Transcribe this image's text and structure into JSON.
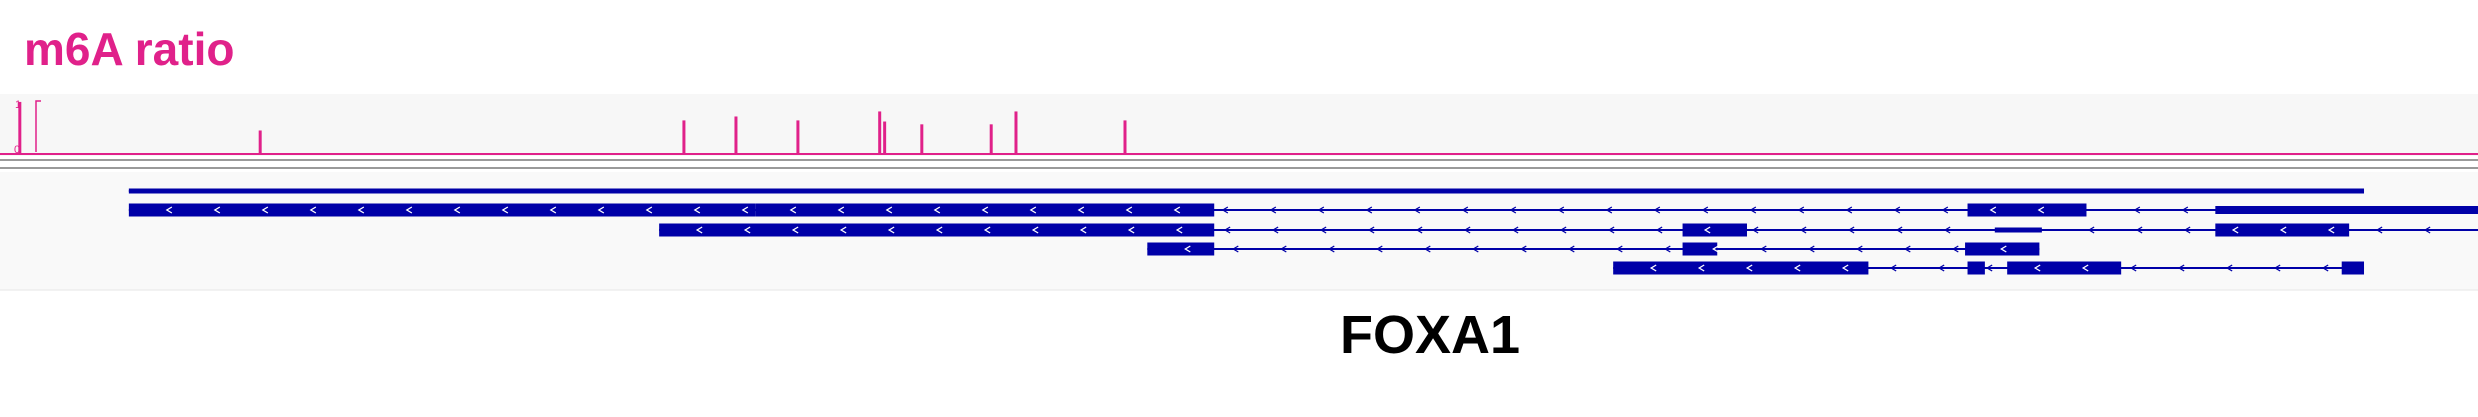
{
  "track": {
    "title": "m6A ratio",
    "color": "#e0218a",
    "scale_max_label": "1",
    "scale_min_label": "0",
    "ylim": [
      0,
      1
    ]
  },
  "gene": {
    "name": "FOXA1",
    "color": "#0000a8"
  },
  "chart_data": {
    "type": "bar",
    "title": "m6A ratio",
    "ylim": [
      0,
      1
    ],
    "x_units": "track-relative position (0-1000)",
    "peaks": [
      {
        "x": 8,
        "value": 0.93
      },
      {
        "x": 105,
        "value": 0.42
      },
      {
        "x": 276,
        "value": 0.6
      },
      {
        "x": 297,
        "value": 0.67
      },
      {
        "x": 322,
        "value": 0.6
      },
      {
        "x": 355,
        "value": 0.76
      },
      {
        "x": 357,
        "value": 0.58
      },
      {
        "x": 372,
        "value": 0.53
      },
      {
        "x": 400,
        "value": 0.53
      },
      {
        "x": 410,
        "value": 0.76
      },
      {
        "x": 454,
        "value": 0.6
      }
    ]
  },
  "transcripts": [
    {
      "name": "t1-top-line",
      "line": [
        52,
        954
      ],
      "strand": "none",
      "exons": [
        {
          "s": 52,
          "e": 954,
          "h": "thin"
        }
      ]
    },
    {
      "name": "t2",
      "line": [
        52,
        1000
      ],
      "strand": "-",
      "exons": [
        {
          "s": 52,
          "e": 305,
          "h": "thick"
        },
        {
          "s": 305,
          "e": 490,
          "h": "thick"
        },
        {
          "s": 794,
          "e": 842,
          "h": "thick"
        },
        {
          "s": 894,
          "e": 1000,
          "h": "mid"
        }
      ]
    },
    {
      "name": "t3",
      "line": [
        266,
        1000
      ],
      "strand": "-",
      "exons": [
        {
          "s": 266,
          "e": 490,
          "h": "thick"
        },
        {
          "s": 679,
          "e": 705,
          "h": "thick"
        },
        {
          "s": 805,
          "e": 824,
          "h": "thin"
        },
        {
          "s": 894,
          "e": 948,
          "h": "thick"
        }
      ]
    },
    {
      "name": "t4",
      "line": [
        463,
        823
      ],
      "strand": "-",
      "exons": [
        {
          "s": 463,
          "e": 490,
          "h": "thick"
        },
        {
          "s": 679,
          "e": 693,
          "h": "thick"
        },
        {
          "s": 793,
          "e": 823,
          "h": "thick"
        }
      ]
    },
    {
      "name": "t5",
      "line": [
        651,
        954
      ],
      "strand": "-",
      "exons": [
        {
          "s": 651,
          "e": 754,
          "h": "thick"
        },
        {
          "s": 794,
          "e": 801,
          "h": "thick"
        },
        {
          "s": 810,
          "e": 856,
          "h": "thick"
        },
        {
          "s": 945,
          "e": 954,
          "h": "thick"
        }
      ]
    }
  ]
}
